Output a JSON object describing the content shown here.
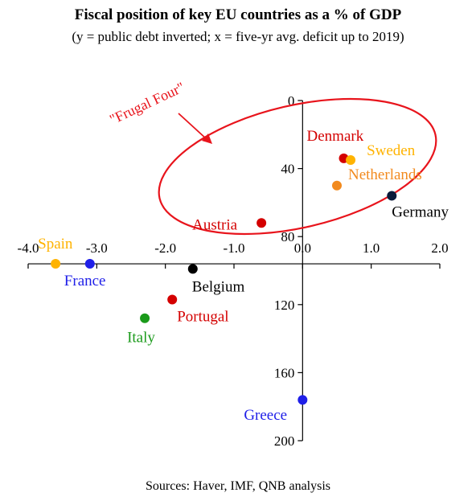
{
  "chart_data": {
    "type": "scatter",
    "title": "Fiscal position of key EU countries as a % of GDP",
    "subtitle": "(y = public debt inverted; x = five-yr avg. deficit up to 2019)",
    "source": "Sources: Haver, IMF, QNB analysis",
    "xlim": [
      -4.0,
      2.0
    ],
    "ylim": [
      0,
      200
    ],
    "y_inverted": true,
    "grid": false,
    "x_ticks": [
      {
        "value": -4.0,
        "label": "-4.0"
      },
      {
        "value": -3.0,
        "label": "-3.0"
      },
      {
        "value": -2.0,
        "label": "-2.0"
      },
      {
        "value": -1.0,
        "label": "-1.0"
      },
      {
        "value": 0.0,
        "label": "0.0"
      },
      {
        "value": 1.0,
        "label": "1.0"
      },
      {
        "value": 2.0,
        "label": "2.0"
      }
    ],
    "y_ticks": [
      {
        "value": 0,
        "label": "0"
      },
      {
        "value": 40,
        "label": "40"
      },
      {
        "value": 80,
        "label": "80"
      },
      {
        "value": 120,
        "label": "120"
      },
      {
        "value": 160,
        "label": "160"
      },
      {
        "value": 200,
        "label": "200"
      }
    ],
    "points": [
      {
        "label": "Denmark",
        "x": 0.6,
        "y": 34,
        "color": "#d40000"
      },
      {
        "label": "Sweden",
        "x": 0.7,
        "y": 35,
        "color": "#ffb300"
      },
      {
        "label": "Netherlands",
        "x": 0.5,
        "y": 50,
        "color": "#f28a1e"
      },
      {
        "label": "Germany",
        "x": 1.3,
        "y": 56,
        "color": "#0a1a3a"
      },
      {
        "label": "Austria",
        "x": -0.6,
        "y": 72,
        "color": "#d40000"
      },
      {
        "label": "Spain",
        "x": -3.6,
        "y": 96,
        "color": "#ffb300"
      },
      {
        "label": "France",
        "x": -3.1,
        "y": 96,
        "color": "#1f1fe8"
      },
      {
        "label": "Belgium",
        "x": -1.6,
        "y": 99,
        "color": "#000000"
      },
      {
        "label": "Portugal",
        "x": -1.9,
        "y": 117,
        "color": "#d40000"
      },
      {
        "label": "Italy",
        "x": -2.3,
        "y": 128,
        "color": "#1a9a1a"
      },
      {
        "label": "Greece",
        "x": 0.0,
        "y": 176,
        "color": "#1f1fe8"
      }
    ],
    "annotations": [
      {
        "text": "\"Frugal Four\"",
        "color": "#e8141c",
        "members": [
          "Denmark",
          "Sweden",
          "Netherlands",
          "Austria"
        ]
      }
    ]
  }
}
